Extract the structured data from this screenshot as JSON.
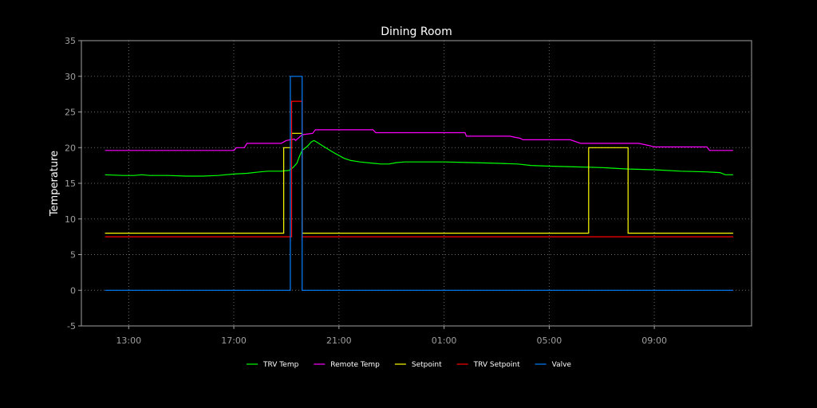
{
  "chart_data": {
    "type": "line",
    "title": "Dining Room",
    "ylabel": "Temperature",
    "xlabel": "",
    "ylim": [
      -5,
      35
    ],
    "yticks": [
      -5,
      0,
      5,
      10,
      15,
      20,
      25,
      30,
      35
    ],
    "xlim_hours": [
      11.2,
      36.7
    ],
    "xticks": [
      {
        "label": "13:00",
        "hour": 13
      },
      {
        "label": "17:00",
        "hour": 17
      },
      {
        "label": "21:00",
        "hour": 21
      },
      {
        "label": "01:00",
        "hour": 25
      },
      {
        "label": "05:00",
        "hour": 29
      },
      {
        "label": "09:00",
        "hour": 33
      }
    ],
    "grid": true,
    "legend_position": "bottom",
    "background_color": "#000000",
    "axes_color": "#a0a0a0",
    "series": [
      {
        "name": "TRV Temp",
        "color": "#00ff00",
        "points": [
          [
            12.1,
            16.2
          ],
          [
            12.8,
            16.1
          ],
          [
            13.2,
            16.1
          ],
          [
            13.5,
            16.2
          ],
          [
            13.8,
            16.1
          ],
          [
            14.5,
            16.1
          ],
          [
            15.2,
            16.0
          ],
          [
            15.8,
            16.0
          ],
          [
            16.4,
            16.1
          ],
          [
            17.0,
            16.3
          ],
          [
            17.5,
            16.4
          ],
          [
            18.0,
            16.6
          ],
          [
            18.3,
            16.7
          ],
          [
            18.8,
            16.7
          ],
          [
            19.1,
            16.8
          ],
          [
            19.25,
            17.2
          ],
          [
            19.4,
            17.8
          ],
          [
            19.5,
            18.8
          ],
          [
            19.6,
            19.6
          ],
          [
            19.8,
            20.2
          ],
          [
            19.95,
            20.8
          ],
          [
            20.05,
            21.0
          ],
          [
            20.15,
            20.8
          ],
          [
            20.4,
            20.2
          ],
          [
            20.8,
            19.3
          ],
          [
            21.2,
            18.5
          ],
          [
            21.45,
            18.2
          ],
          [
            21.8,
            18.0
          ],
          [
            22.3,
            17.8
          ],
          [
            22.6,
            17.7
          ],
          [
            22.9,
            17.7
          ],
          [
            23.2,
            17.9
          ],
          [
            23.5,
            18.0
          ],
          [
            24.0,
            18.0
          ],
          [
            25.0,
            18.0
          ],
          [
            26.0,
            17.9
          ],
          [
            27.0,
            17.8
          ],
          [
            27.8,
            17.7
          ],
          [
            28.3,
            17.5
          ],
          [
            29.0,
            17.4
          ],
          [
            30.0,
            17.3
          ],
          [
            31.0,
            17.2
          ],
          [
            32.0,
            17.0
          ],
          [
            33.0,
            16.9
          ],
          [
            34.0,
            16.7
          ],
          [
            35.0,
            16.6
          ],
          [
            35.5,
            16.5
          ],
          [
            35.7,
            16.2
          ],
          [
            36.0,
            16.2
          ]
        ]
      },
      {
        "name": "Remote Temp",
        "color": "#ff00ff",
        "points": [
          [
            12.1,
            19.6
          ],
          [
            17.0,
            19.6
          ],
          [
            17.1,
            20.0
          ],
          [
            17.4,
            20.0
          ],
          [
            17.5,
            20.6
          ],
          [
            18.8,
            20.6
          ],
          [
            19.0,
            21.0
          ],
          [
            19.3,
            21.2
          ],
          [
            19.35,
            21.0
          ],
          [
            19.6,
            21.8
          ],
          [
            20.0,
            22.0
          ],
          [
            20.1,
            22.5
          ],
          [
            21.0,
            22.5
          ],
          [
            22.3,
            22.5
          ],
          [
            22.4,
            22.1
          ],
          [
            24.0,
            22.1
          ],
          [
            25.8,
            22.1
          ],
          [
            25.85,
            21.6
          ],
          [
            27.5,
            21.6
          ],
          [
            27.9,
            21.3
          ],
          [
            28.0,
            21.1
          ],
          [
            29.3,
            21.1
          ],
          [
            29.8,
            21.1
          ],
          [
            30.2,
            20.6
          ],
          [
            31.5,
            20.6
          ],
          [
            32.4,
            20.6
          ],
          [
            32.8,
            20.3
          ],
          [
            33.0,
            20.1
          ],
          [
            34.5,
            20.1
          ],
          [
            35.0,
            20.1
          ],
          [
            35.1,
            19.6
          ],
          [
            36.0,
            19.6
          ]
        ]
      },
      {
        "name": "Setpoint",
        "color": "#ffff00",
        "points": [
          [
            12.1,
            8.0
          ],
          [
            18.9,
            8.0
          ],
          [
            18.9,
            20.0
          ],
          [
            19.2,
            20.0
          ],
          [
            19.2,
            22.0
          ],
          [
            19.6,
            22.0
          ],
          [
            19.6,
            8.0
          ],
          [
            30.5,
            8.0
          ],
          [
            30.5,
            20.0
          ],
          [
            32.0,
            20.0
          ],
          [
            32.0,
            8.0
          ],
          [
            36.0,
            8.0
          ]
        ]
      },
      {
        "name": "TRV Setpoint",
        "color": "#ff0000",
        "points": [
          [
            12.1,
            7.5
          ],
          [
            19.2,
            7.5
          ],
          [
            19.2,
            26.5
          ],
          [
            19.6,
            26.5
          ],
          [
            19.6,
            7.5
          ],
          [
            36.0,
            7.5
          ]
        ]
      },
      {
        "name": "Valve",
        "color": "#0080ff",
        "points": [
          [
            12.1,
            0
          ],
          [
            19.15,
            0
          ],
          [
            19.15,
            30
          ],
          [
            19.6,
            30
          ],
          [
            19.6,
            0
          ],
          [
            36.0,
            0
          ]
        ]
      }
    ]
  }
}
